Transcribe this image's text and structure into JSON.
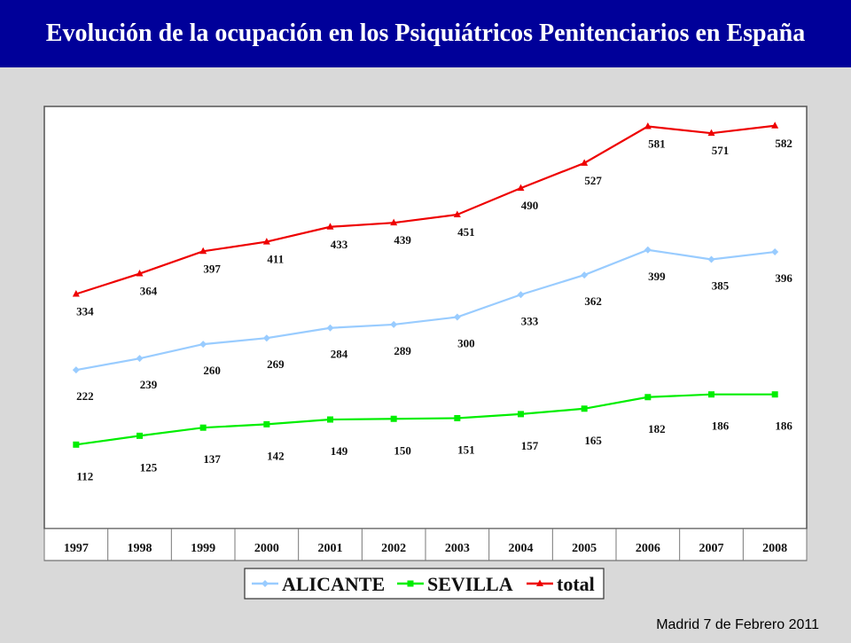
{
  "header": {
    "title": "Evolución de la ocupación en los Psiquiátricos Penitenciarios en España"
  },
  "footer": {
    "text": "Madrid 7 de Febrero 2011"
  },
  "colors": {
    "title_bar": "#000099",
    "alicante": "#99ccff",
    "sevilla": "#00ee00",
    "total": "#ee0000"
  },
  "chart_data": {
    "type": "line",
    "title": "",
    "xlabel": "",
    "ylabel": "",
    "categories": [
      "1997",
      "1998",
      "1999",
      "2000",
      "2001",
      "2002",
      "2003",
      "2004",
      "2005",
      "2006",
      "2007",
      "2008"
    ],
    "ylim": [
      0,
      640
    ],
    "grid": false,
    "legend_position": "bottom-center",
    "series": [
      {
        "name": "ALICANTE",
        "color": "#99ccff",
        "marker": "diamond",
        "values": [
          222,
          239,
          260,
          269,
          284,
          289,
          300,
          333,
          362,
          399,
          385,
          396
        ]
      },
      {
        "name": "SEVILLA",
        "color": "#00ee00",
        "marker": "square",
        "values": [
          112,
          125,
          137,
          142,
          149,
          150,
          151,
          157,
          165,
          182,
          186,
          186
        ]
      },
      {
        "name": "total",
        "color": "#ee0000",
        "marker": "triangle",
        "values": [
          334,
          364,
          397,
          411,
          433,
          439,
          451,
          490,
          527,
          581,
          571,
          582
        ]
      }
    ]
  }
}
